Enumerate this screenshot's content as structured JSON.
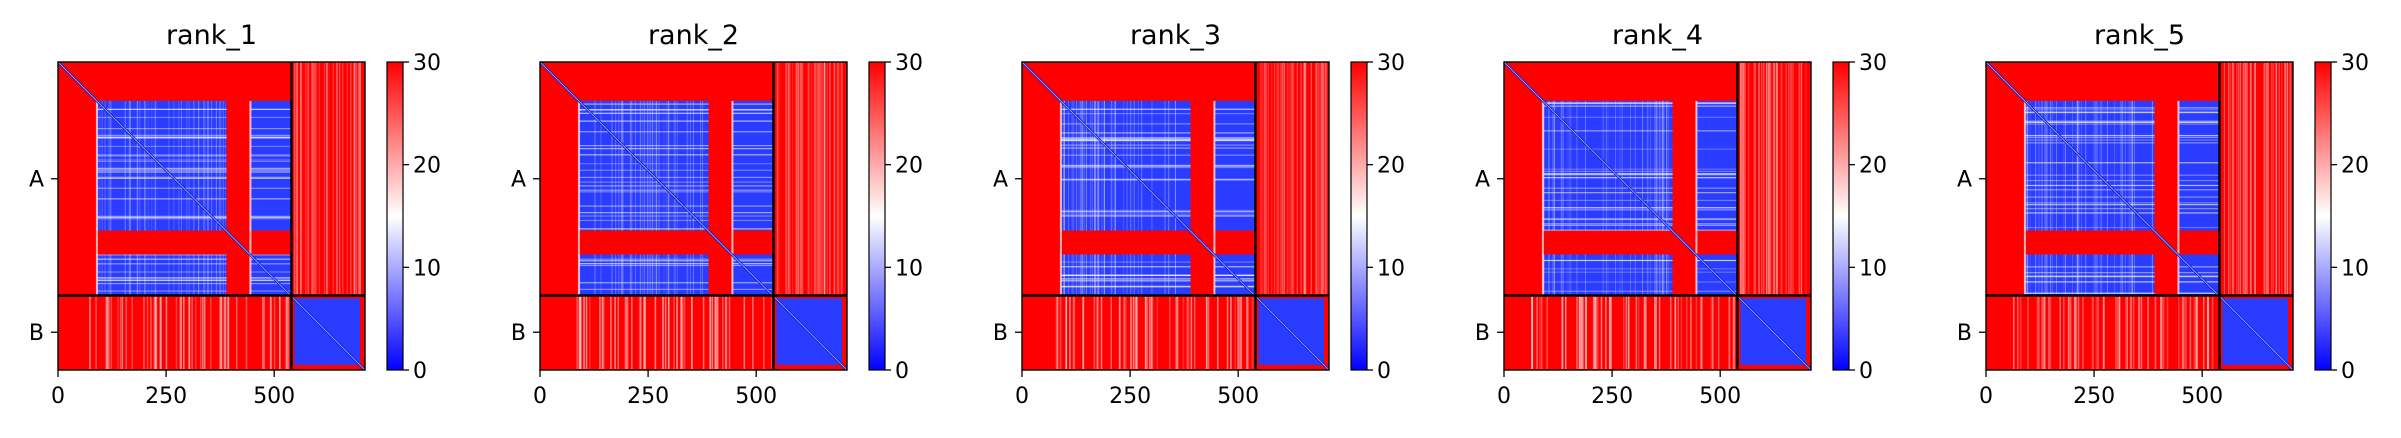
{
  "chart_data": {
    "type": "heatmap",
    "colormap": {
      "low": "#0000ff",
      "mid": "#ffffff",
      "high": "#ff0000"
    },
    "panels": [
      {
        "title": "rank_1",
        "variant": 0
      },
      {
        "title": "rank_2",
        "variant": 1
      },
      {
        "title": "rank_3",
        "variant": 2
      },
      {
        "title": "rank_4",
        "variant": 3
      },
      {
        "title": "rank_5",
        "variant": 4
      }
    ],
    "chains": [
      {
        "label": "A",
        "start": 0,
        "end": 540
      },
      {
        "label": "B",
        "start": 540,
        "end": 710
      }
    ],
    "residue_count": 710,
    "x_ticks": [
      0,
      250,
      500
    ],
    "x_tick_labels": [
      "0",
      "250",
      "500"
    ],
    "colorbar": {
      "range": [
        0,
        30
      ],
      "ticks": [
        0,
        10,
        20,
        30
      ],
      "tick_labels": [
        "0",
        "10",
        "20",
        "30"
      ]
    },
    "chain_A_blocks": [
      [
        90,
        390
      ],
      [
        445,
        540
      ]
    ],
    "chain_A_gap": [
      390,
      445
    ]
  }
}
